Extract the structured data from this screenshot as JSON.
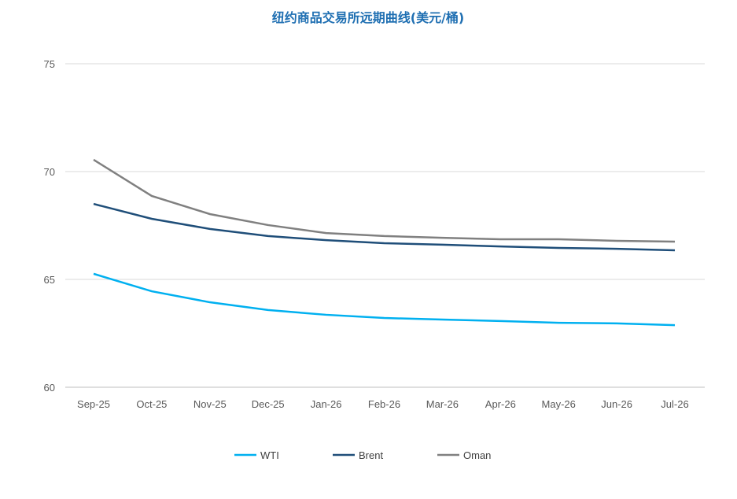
{
  "chart_data": {
    "type": "line",
    "title": "纽约商品交易所远期曲线(美元/桶)",
    "xlabel": "",
    "ylabel": "",
    "ylim": [
      60,
      75
    ],
    "yticks": [
      60,
      65,
      70,
      75
    ],
    "categories": [
      "Sep-25",
      "Oct-25",
      "Nov-25",
      "Dec-25",
      "Jan-26",
      "Feb-26",
      "Mar-26",
      "Apr-26",
      "May-26",
      "Jun-26",
      "Jul-26"
    ],
    "grid": true,
    "legend_position": "bottom",
    "series": [
      {
        "name": "WTI",
        "color": "#00b0f0",
        "values": [
          65.26,
          64.45,
          63.94,
          63.58,
          63.36,
          63.21,
          63.14,
          63.07,
          62.99,
          62.96,
          62.88
        ]
      },
      {
        "name": "Brent",
        "color": "#1f4e79",
        "values": [
          68.5,
          67.81,
          67.34,
          67.01,
          66.82,
          66.68,
          66.61,
          66.53,
          66.46,
          66.42,
          66.35
        ]
      },
      {
        "name": "Oman",
        "color": "#808080",
        "values": [
          70.55,
          68.87,
          68.03,
          67.52,
          67.15,
          67.01,
          66.93,
          66.86,
          66.86,
          66.79,
          66.75
        ]
      }
    ]
  }
}
